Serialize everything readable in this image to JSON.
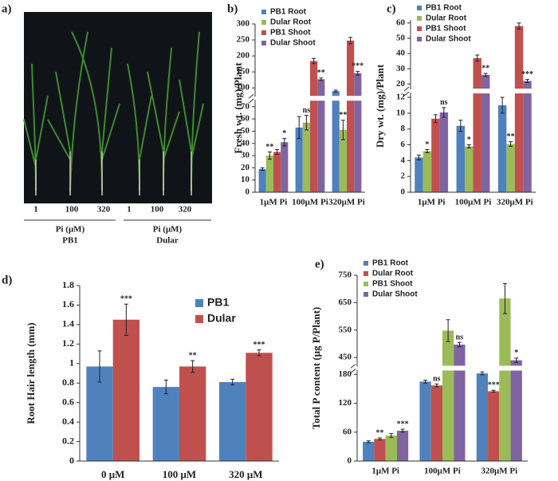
{
  "photo": {
    "panel_label": "a)",
    "groups": [
      {
        "ticks": [
          "1",
          "100",
          "320"
        ],
        "axis_label": "Pi (μM)",
        "name": "PB1"
      },
      {
        "ticks": [
          "1",
          "100",
          "320"
        ],
        "axis_label": "Pi (μM)",
        "name": "Dular"
      }
    ]
  },
  "chart_data": [
    {
      "type": "bar",
      "panel_label": "b)",
      "y_label": "Fresh wt. (mg)/Plant",
      "categories": [
        "1μM  Pi",
        "100μM  Pi",
        "320μM  Pi"
      ],
      "legend": "top-left",
      "ysegments": [
        {
          "ylim": [
            0,
            75
          ],
          "yticks": [
            0,
            10,
            20,
            30,
            40,
            50,
            60,
            70
          ]
        },
        {
          "ylim": [
            75,
            300
          ],
          "yticks": [
            100,
            150,
            200,
            250,
            300
          ]
        }
      ],
      "series": [
        {
          "name": "PB1 Root",
          "color": "#4f81bd",
          "values": [
            19,
            53,
            90
          ],
          "errors": [
            1,
            9,
            3
          ]
        },
        {
          "name": "Dular Root",
          "color": "#9bbb59",
          "values": [
            30,
            57,
            51
          ],
          "errors": [
            3,
            6,
            8
          ],
          "significance": [
            "**",
            "ns",
            "**"
          ]
        },
        {
          "name": "PB1 Shoot",
          "color": "#c0504d",
          "values": [
            33,
            184,
            248
          ],
          "errors": [
            2,
            8,
            10
          ]
        },
        {
          "name": "Dular Shoot",
          "color": "#8064a2",
          "values": [
            41,
            127,
            146
          ],
          "errors": [
            3,
            4,
            6
          ],
          "significance": [
            "*",
            "**",
            "***"
          ]
        }
      ]
    },
    {
      "type": "bar",
      "panel_label": "c)",
      "y_label": "Dry wt. (mg)/Plant",
      "categories": [
        "1μM  Pi",
        "100μM  Pi",
        "320μM  Pi"
      ],
      "legend": "top-left",
      "ysegments": [
        {
          "ylim": [
            0,
            12.5
          ],
          "yticks": [
            0,
            2,
            4,
            6,
            8,
            10,
            12
          ]
        },
        {
          "ylim": [
            17,
            62
          ],
          "yticks": [
            20,
            30,
            40,
            50,
            60
          ]
        }
      ],
      "series": [
        {
          "name": "PB1 Root",
          "color": "#4f81bd",
          "values": [
            4.4,
            8.4,
            11
          ],
          "errors": [
            0.3,
            0.7,
            1
          ]
        },
        {
          "name": "Dular Root",
          "color": "#9bbb59",
          "values": [
            5.2,
            5.8,
            6.1
          ],
          "errors": [
            0.2,
            0.2,
            0.3
          ],
          "significance": [
            "*",
            "*",
            "**"
          ]
        },
        {
          "name": "PB1 Shoot",
          "color": "#c0504d",
          "values": [
            9.3,
            37,
            58
          ],
          "errors": [
            0.5,
            2,
            2
          ]
        },
        {
          "name": "Dular Shoot",
          "color": "#8064a2",
          "values": [
            10.1,
            26,
            22
          ],
          "errors": [
            0.6,
            1,
            1
          ],
          "significance": [
            "ns",
            "**",
            "***"
          ]
        }
      ]
    },
    {
      "type": "bar",
      "panel_label": "d)",
      "y_label": "Root Hair length (mm)",
      "categories": [
        "0 μM",
        "100 μM",
        "320 μM"
      ],
      "legend": "top-right",
      "ylim": [
        0,
        1.8
      ],
      "yticks": [
        0,
        0.2,
        0.4,
        0.6,
        0.8,
        1,
        1.2,
        1.4,
        1.6,
        1.8
      ],
      "series": [
        {
          "name": "PB1",
          "color": "#4f81bd",
          "values": [
            0.97,
            0.76,
            0.81
          ],
          "errors": [
            0.16,
            0.07,
            0.03
          ]
        },
        {
          "name": "Dular",
          "color": "#c0504d",
          "values": [
            1.45,
            0.97,
            1.11
          ],
          "errors": [
            0.16,
            0.06,
            0.03
          ],
          "significance": [
            "***",
            "**",
            "***"
          ]
        }
      ]
    },
    {
      "type": "bar",
      "panel_label": "e)",
      "y_label": "Total P content (μg P/Plant)",
      "categories": [
        "1μM  Pi",
        "100μM  Pi",
        "320μM  Pi"
      ],
      "legend": "top-left",
      "ysegments": [
        {
          "ylim": [
            0,
            188
          ],
          "yticks": [
            0,
            60,
            120,
            180
          ]
        },
        {
          "ylim": [
            420,
            750
          ],
          "yticks": [
            450,
            550,
            650,
            750
          ]
        }
      ],
      "series": [
        {
          "name": "PB1 Root",
          "color": "#4f81bd",
          "values": [
            40,
            165,
            182
          ],
          "errors": [
            2,
            3,
            3
          ]
        },
        {
          "name": "Dular Root",
          "color": "#c0504d",
          "values": [
            46,
            157,
            145
          ],
          "errors": [
            2,
            3,
            2
          ],
          "significance": [
            "**",
            "ns",
            "***"
          ]
        },
        {
          "name": "PB1 Shoot",
          "color": "#9bbb59",
          "values": [
            53,
            548,
            665
          ],
          "errors": [
            4,
            40,
            55
          ]
        },
        {
          "name": "Dular Shoot",
          "color": "#8064a2",
          "values": [
            63,
            497,
            440
          ],
          "errors": [
            3,
            8,
            8
          ],
          "significance": [
            "***",
            "ns",
            "*"
          ]
        }
      ]
    }
  ]
}
